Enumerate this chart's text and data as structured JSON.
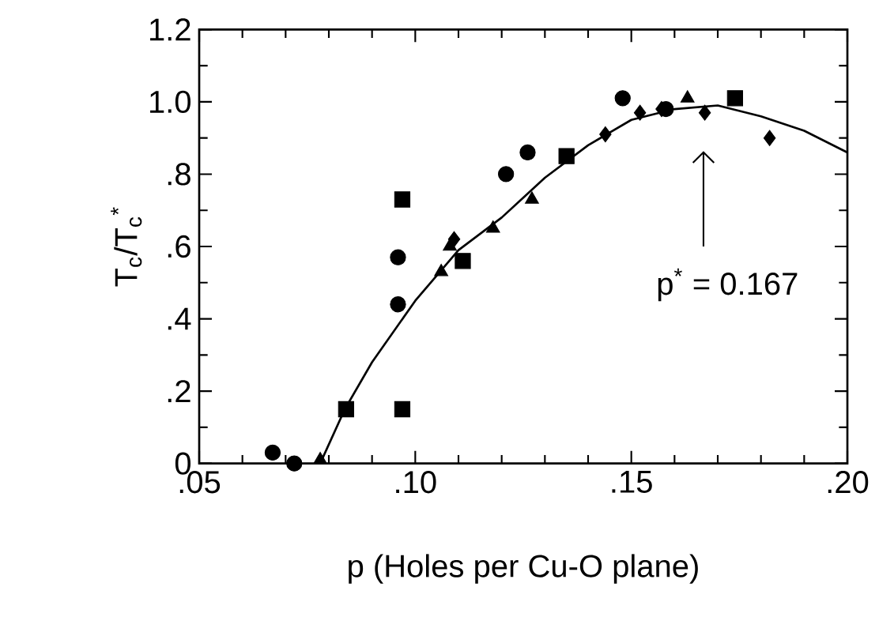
{
  "chart_data": {
    "type": "scatter",
    "xlabel": "p (Holes per Cu-O plane)",
    "ylabel": "T$_{c}$/T$_{c}$$^{*}$",
    "xlim": [
      0.05,
      0.2
    ],
    "ylim": [
      0,
      1.2
    ],
    "xticks": [
      {
        "value": 0.05,
        "label": ".05"
      },
      {
        "value": 0.1,
        "label": ".10"
      },
      {
        "value": 0.15,
        "label": ".15"
      },
      {
        "value": 0.2,
        "label": ".20"
      }
    ],
    "yticks": [
      0,
      {
        "value": 0.2,
        "label": ".2"
      },
      {
        "value": 0.4,
        "label": ".4"
      },
      {
        "value": 0.6,
        "label": ".6"
      },
      {
        "value": 0.8,
        "label": ".8"
      },
      {
        "value": 1.0,
        "label": "1.0"
      },
      {
        "value": 1.2,
        "label": "1.2"
      }
    ],
    "grid": false,
    "series": [
      {
        "marker": "circle",
        "color": "#000000",
        "x": [
          0.067,
          0.072,
          0.096,
          0.096,
          0.121,
          0.126,
          0.148,
          0.158
        ],
        "values": [
          0.03,
          0.0,
          0.57,
          0.44,
          0.8,
          0.86,
          1.01,
          0.98
        ]
      },
      {
        "marker": "square",
        "color": "#000000",
        "x": [
          0.084,
          0.097,
          0.097,
          0.111,
          0.135,
          0.174
        ],
        "values": [
          0.15,
          0.15,
          0.73,
          0.56,
          0.85,
          1.01
        ]
      },
      {
        "marker": "triangle",
        "color": "#000000",
        "x": [
          0.078,
          0.106,
          0.108,
          0.118,
          0.127,
          0.163
        ],
        "values": [
          0.01,
          0.53,
          0.6,
          0.65,
          0.73,
          1.01
        ]
      },
      {
        "marker": "diamond",
        "color": "#000000",
        "x": [
          0.109,
          0.144,
          0.152,
          0.157,
          0.167,
          0.182
        ],
        "values": [
          0.62,
          0.91,
          0.97,
          0.98,
          0.97,
          0.9
        ]
      },
      {
        "type": "line",
        "marker": "none",
        "line_style": "solid",
        "color": "#000000",
        "x": [
          0.078,
          0.0837,
          0.09,
          0.1,
          0.11,
          0.12,
          0.13,
          0.14,
          0.15,
          0.16,
          0.17,
          0.18,
          0.19,
          0.2
        ],
        "values": [
          0,
          0.15,
          0.28,
          0.45,
          0.59,
          0.68,
          0.79,
          0.88,
          0.95,
          0.98,
          0.99,
          0.96,
          0.92,
          0.86
        ]
      }
    ],
    "annotations": [
      "p$^{*}$ = 0.167"
    ]
  }
}
